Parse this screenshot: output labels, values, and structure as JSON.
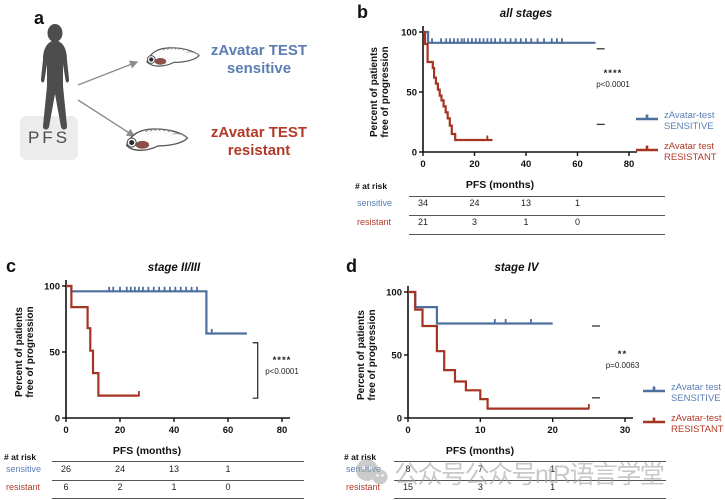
{
  "colors": {
    "sensitive_blue": "#4d6f9d",
    "resistant_red": "#a63423",
    "sensitive_text": "#5b7db3",
    "resistant_text": "#b23a28"
  },
  "panel_a": {
    "label": "a",
    "pfs_box": "PFS",
    "sensitive": {
      "line1": "zAvatar TEST",
      "line2": "sensitive"
    },
    "resistant": {
      "line1": "zAvatar TEST",
      "line2": "resistant"
    }
  },
  "watermark": {
    "icon": "wechat-icon",
    "text": "公众号公众号ntR语言学堂"
  },
  "chart_data": [
    {
      "id": "b",
      "panel_label": "b",
      "type": "line",
      "kind": "kaplan-meier",
      "title": "all stages",
      "xlabel": "PFS (months)",
      "ylabel": [
        "Percent of patients",
        "free of progression"
      ],
      "xlim": [
        0,
        80
      ],
      "ylim": [
        0,
        100
      ],
      "xticks": [
        0,
        20,
        40,
        60,
        80
      ],
      "yticks": [
        0,
        50,
        100
      ],
      "significance": "****",
      "pvalue": "p<0.0001",
      "series": [
        {
          "name": "zAvatar-test SENSITIVE",
          "color_key": "sensitive_blue",
          "points": [
            [
              0,
              100
            ],
            [
              2,
              100
            ],
            [
              2,
              91
            ],
            [
              67,
              91
            ]
          ],
          "censors": [
            [
              3.5,
              91
            ],
            [
              7,
              91
            ],
            [
              9,
              91
            ],
            [
              10.5,
              91
            ],
            [
              12,
              91
            ],
            [
              13.5,
              91
            ],
            [
              15,
              91
            ],
            [
              16,
              91
            ],
            [
              17.5,
              91
            ],
            [
              19,
              91
            ],
            [
              20.5,
              91
            ],
            [
              22,
              91
            ],
            [
              23.5,
              91
            ],
            [
              25,
              91
            ],
            [
              26.5,
              91
            ],
            [
              28,
              91
            ],
            [
              30,
              91
            ],
            [
              32,
              91
            ],
            [
              34,
              91
            ],
            [
              36,
              91
            ],
            [
              38,
              91
            ],
            [
              40,
              91
            ],
            [
              42,
              91
            ],
            [
              44.5,
              91
            ],
            [
              47,
              91
            ],
            [
              50,
              91
            ],
            [
              52,
              91
            ],
            [
              54,
              91
            ]
          ]
        },
        {
          "name": "zAvatar test RESISTANT",
          "color_key": "resistant_red",
          "points": [
            [
              0,
              100
            ],
            [
              0.8,
              100
            ],
            [
              0.8,
              90
            ],
            [
              1.8,
              90
            ],
            [
              1.8,
              75
            ],
            [
              3.8,
              75
            ],
            [
              3.8,
              70
            ],
            [
              4.3,
              70
            ],
            [
              4.3,
              62
            ],
            [
              5,
              62
            ],
            [
              5,
              57
            ],
            [
              5.8,
              57
            ],
            [
              5.8,
              52
            ],
            [
              6.5,
              52
            ],
            [
              6.5,
              47
            ],
            [
              7.2,
              47
            ],
            [
              7.2,
              43
            ],
            [
              8,
              43
            ],
            [
              8,
              38
            ],
            [
              8.8,
              38
            ],
            [
              8.8,
              33
            ],
            [
              9.6,
              33
            ],
            [
              9.6,
              28
            ],
            [
              10.4,
              28
            ],
            [
              10.4,
              22
            ],
            [
              11.2,
              22
            ],
            [
              11.2,
              15
            ],
            [
              12.5,
              15
            ],
            [
              12.5,
              10
            ],
            [
              27,
              10
            ]
          ],
          "censors": [
            [
              25,
              10
            ]
          ]
        }
      ],
      "side_dashes": [
        [
          69,
          86
        ],
        [
          69,
          23
        ]
      ],
      "legend": [
        {
          "line1": "zAvatar-test",
          "line2": "SENSITIVE",
          "color_key": "sensitive_text"
        },
        {
          "line1": "zAvatar test",
          "line2": "RESISTANT",
          "color_key": "resistant_text"
        }
      ],
      "risk_table": {
        "title": "# at risk",
        "columns": [
          0,
          20,
          40,
          60
        ],
        "rows": [
          {
            "label": "sensitive",
            "color_key": "sensitive_text",
            "values": [
              "34",
              "24",
              "13",
              "1"
            ]
          },
          {
            "label": "resistant",
            "color_key": "resistant_text",
            "values": [
              "21",
              "3",
              "1",
              "0"
            ]
          }
        ]
      }
    },
    {
      "id": "c",
      "panel_label": "c",
      "type": "line",
      "kind": "kaplan-meier",
      "title": "stage II/III",
      "xlabel": "PFS (months)",
      "ylabel": [
        "Percent of patients",
        "free of progression"
      ],
      "xlim": [
        0,
        80
      ],
      "ylim": [
        0,
        100
      ],
      "xticks": [
        0,
        20,
        40,
        60,
        80
      ],
      "yticks": [
        0,
        50,
        100
      ],
      "significance": "****",
      "pvalue": "p<0.0001",
      "series": [
        {
          "name": "zAvatar-test SENSITIVE",
          "color_key": "sensitive_blue",
          "points": [
            [
              0,
              100
            ],
            [
              2,
              100
            ],
            [
              2,
              96
            ],
            [
              52,
              96
            ],
            [
              52,
              64
            ],
            [
              67,
              64
            ]
          ],
          "censors": [
            [
              16,
              96
            ],
            [
              17.5,
              96
            ],
            [
              20,
              96
            ],
            [
              22.5,
              96
            ],
            [
              24,
              96
            ],
            [
              25.5,
              96
            ],
            [
              27,
              96
            ],
            [
              28.5,
              96
            ],
            [
              30.5,
              96
            ],
            [
              32.5,
              96
            ],
            [
              34.5,
              96
            ],
            [
              36.5,
              96
            ],
            [
              38.5,
              96
            ],
            [
              40.5,
              96
            ],
            [
              42.5,
              96
            ],
            [
              44.5,
              96
            ],
            [
              46.5,
              96
            ],
            [
              48.5,
              96
            ],
            [
              54,
              64
            ]
          ]
        },
        {
          "name": "zAvatar test RESISTANT",
          "color_key": "resistant_red",
          "points": [
            [
              0,
              100
            ],
            [
              2,
              100
            ],
            [
              2,
              84
            ],
            [
              8,
              84
            ],
            [
              8,
              68
            ],
            [
              9,
              68
            ],
            [
              9,
              51
            ],
            [
              10,
              51
            ],
            [
              10,
              34
            ],
            [
              12,
              34
            ],
            [
              12,
              17
            ],
            [
              27,
              17
            ]
          ],
          "censors": [
            [
              27,
              17
            ]
          ]
        }
      ],
      "bracket": {
        "x": 71,
        "y1": 57,
        "y2": 15
      },
      "risk_table": {
        "title": "# at risk",
        "columns": [
          0,
          20,
          40,
          60
        ],
        "rows": [
          {
            "label": "sensitive",
            "color_key": "sensitive_text",
            "values": [
              "26",
              "24",
              "13",
              "1"
            ]
          },
          {
            "label": "resistant",
            "color_key": "resistant_text",
            "values": [
              "6",
              "2",
              "1",
              "0"
            ]
          }
        ]
      }
    },
    {
      "id": "d",
      "panel_label": "d",
      "type": "line",
      "kind": "kaplan-meier",
      "title": "stage IV",
      "xlabel": "PFS (months)",
      "ylabel": [
        "Percent of patients",
        "free of progression"
      ],
      "xlim": [
        0,
        30
      ],
      "ylim": [
        0,
        100
      ],
      "xticks": [
        0,
        10,
        20,
        30
      ],
      "yticks": [
        0,
        50,
        100
      ],
      "significance": "**",
      "pvalue": "p=0.0063",
      "series": [
        {
          "name": "zAvatar test SENSITIVE",
          "color_key": "sensitive_blue",
          "points": [
            [
              0,
              100
            ],
            [
              1,
              100
            ],
            [
              1,
              88
            ],
            [
              4,
              88
            ],
            [
              4,
              75
            ],
            [
              20,
              75
            ]
          ],
          "censors": [
            [
              12,
              75
            ],
            [
              13.5,
              75
            ],
            [
              17,
              75
            ]
          ]
        },
        {
          "name": "zAvatar-test RESISTANT",
          "color_key": "resistant_red",
          "points": [
            [
              0,
              100
            ],
            [
              1,
              100
            ],
            [
              1,
              86
            ],
            [
              2,
              86
            ],
            [
              2,
              73
            ],
            [
              4,
              73
            ],
            [
              4,
              53
            ],
            [
              5,
              53
            ],
            [
              5,
              38
            ],
            [
              6.5,
              38
            ],
            [
              6.5,
              29
            ],
            [
              8,
              29
            ],
            [
              8,
              22
            ],
            [
              10,
              22
            ],
            [
              10,
              15
            ],
            [
              11,
              15
            ],
            [
              11,
              7.5
            ],
            [
              25,
              7.5
            ]
          ],
          "censors": [
            [
              25,
              7.5
            ]
          ]
        }
      ],
      "side_dashes": [
        [
          26,
          73
        ],
        [
          26,
          16
        ]
      ],
      "legend": [
        {
          "line1": "zAvatar test",
          "line2": "SENSITIVE",
          "color_key": "sensitive_text"
        },
        {
          "line1": "zAvatar-test",
          "line2": "RESISTANT",
          "color_key": "resistant_text"
        }
      ],
      "risk_table": {
        "title": "# at risk",
        "columns": [
          0,
          10,
          20
        ],
        "rows": [
          {
            "label": "sensitive",
            "color_key": "sensitive_text",
            "values": [
              "8",
              "7",
              "1"
            ]
          },
          {
            "label": "resistant",
            "color_key": "resistant_text",
            "values": [
              "15",
              "3",
              "1"
            ]
          }
        ]
      }
    }
  ]
}
